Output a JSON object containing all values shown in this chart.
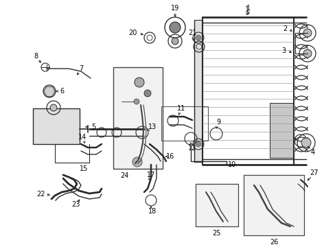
{
  "bg_color": "#ffffff",
  "lc": "#2a2a2a",
  "fig_w": 4.89,
  "fig_h": 3.6,
  "dpi": 100,
  "xl": 0,
  "xr": 489,
  "yb": 0,
  "yt": 360
}
